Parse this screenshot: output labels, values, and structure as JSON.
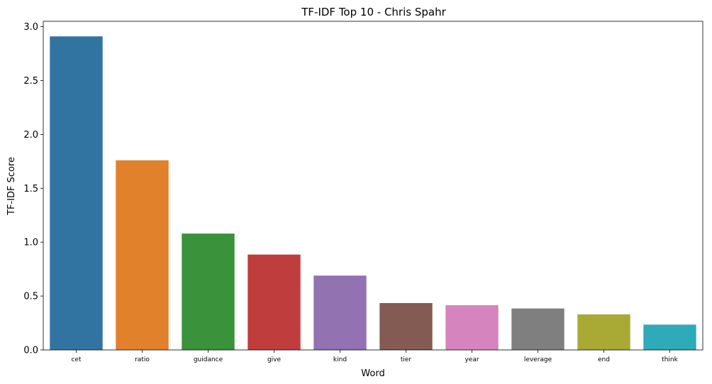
{
  "chart_data": {
    "type": "bar",
    "title": "TF-IDF Top 10 - Chris Spahr",
    "xlabel": "Word",
    "ylabel": "TF-IDF Score",
    "categories": [
      "cet",
      "ratio",
      "guidance",
      "give",
      "kind",
      "tier",
      "year",
      "leverage",
      "end",
      "think"
    ],
    "values": [
      2.91,
      1.76,
      1.08,
      0.885,
      0.69,
      0.435,
      0.415,
      0.385,
      0.33,
      0.235
    ],
    "colors": [
      "#3274a1",
      "#e1812c",
      "#3a923a",
      "#c03d3e",
      "#9372b2",
      "#845b53",
      "#d684bd",
      "#7f7f7f",
      "#a9aa35",
      "#2eaab8"
    ],
    "ylim": [
      0,
      3.05
    ],
    "yticks": [
      "0.0",
      "0.5",
      "1.0",
      "1.5",
      "2.0",
      "2.5",
      "3.0"
    ],
    "grid": false,
    "legend": "none"
  }
}
